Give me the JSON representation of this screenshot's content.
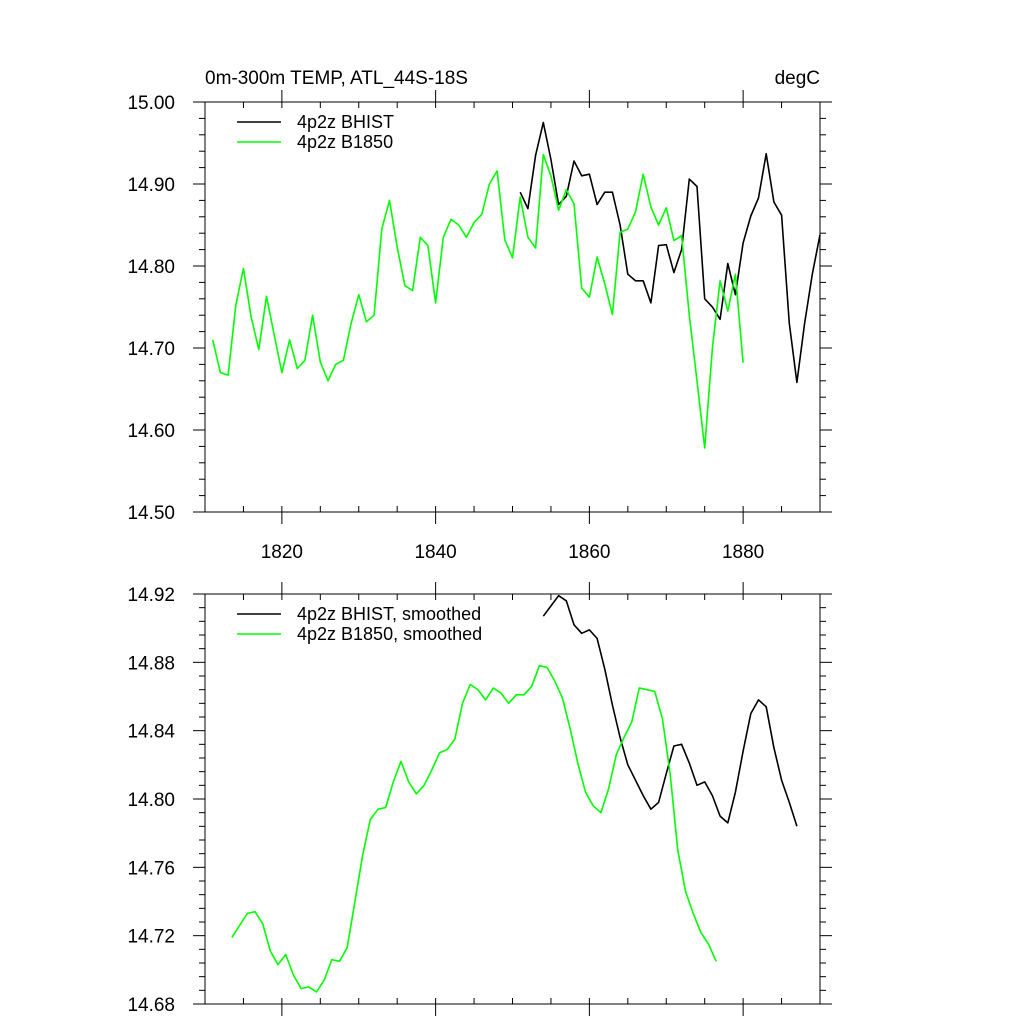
{
  "chart_data": [
    {
      "type": "line",
      "title": "0m-300m TEMP, ATL_44S-18S",
      "units": "degC",
      "xlim": [
        1810,
        1890
      ],
      "ylim": [
        14.5,
        15.0
      ],
      "xticks": [
        1820,
        1840,
        1860,
        1880
      ],
      "yticks": [
        "14.50",
        "14.60",
        "14.70",
        "14.80",
        "14.90",
        "15.00"
      ],
      "legend": {
        "position": "top-left"
      },
      "series": [
        {
          "name": "4p2z BHIST",
          "color": "#000000",
          "x0": 1851,
          "values": [
            14.89,
            14.87,
            14.935,
            14.975,
            14.93,
            14.875,
            14.885,
            14.928,
            14.91,
            14.912,
            14.875,
            14.89,
            14.89,
            14.85,
            14.79,
            14.782,
            14.782,
            14.755,
            14.825,
            14.826,
            14.792,
            14.82,
            14.906,
            14.897,
            14.76,
            14.75,
            14.735,
            14.803,
            14.765,
            14.828,
            14.861,
            14.883,
            14.937,
            14.878,
            14.862,
            14.73,
            14.658,
            14.73,
            14.79,
            14.838
          ]
        },
        {
          "name": "4p2z B1850",
          "color": "#00ff00",
          "x0": 1811,
          "values": [
            14.71,
            14.67,
            14.667,
            14.752,
            14.797,
            14.738,
            14.698,
            14.763,
            14.716,
            14.67,
            14.71,
            14.675,
            14.685,
            14.74,
            14.683,
            14.66,
            14.68,
            14.685,
            14.73,
            14.765,
            14.732,
            14.74,
            14.845,
            14.88,
            14.823,
            14.776,
            14.77,
            14.835,
            14.825,
            14.755,
            14.835,
            14.857,
            14.85,
            14.835,
            14.853,
            14.863,
            14.9,
            14.916,
            14.832,
            14.81,
            14.884,
            14.835,
            14.822,
            14.936,
            14.91,
            14.868,
            14.893,
            14.876,
            14.773,
            14.762,
            14.811,
            14.778,
            14.741,
            14.841,
            14.845,
            14.866,
            14.912,
            14.872,
            14.85,
            14.871,
            14.831,
            14.837,
            14.74,
            14.66,
            14.578,
            14.7,
            14.782,
            14.745,
            14.79,
            14.682
          ]
        }
      ]
    },
    {
      "type": "line",
      "title": "",
      "xlim": [
        1810,
        1890
      ],
      "ylim": [
        14.68,
        14.92
      ],
      "xticks": [
        1820,
        1840,
        1860,
        1880
      ],
      "yticks": [
        "14.68",
        "14.72",
        "14.76",
        "14.80",
        "14.84",
        "14.88",
        "14.92"
      ],
      "legend": {
        "position": "top-left"
      },
      "series": [
        {
          "name": "4p2z BHIST, smoothed",
          "color": "#000000",
          "x0": 1854,
          "values": [
            14.907,
            14.913,
            14.919,
            14.916,
            14.902,
            14.897,
            14.899,
            14.894,
            14.876,
            14.855,
            14.836,
            14.82,
            14.811,
            14.802,
            14.794,
            14.798,
            14.815,
            14.831,
            14.832,
            14.821,
            14.808,
            14.81,
            14.802,
            14.79,
            14.786,
            14.804,
            14.828,
            14.85,
            14.858,
            14.854,
            14.83,
            14.811,
            14.798,
            14.784
          ]
        },
        {
          "name": "4p2z B1850, smoothed",
          "color": "#00ff00",
          "x0": 1813.5,
          "values": [
            14.719,
            14.726,
            14.733,
            14.734,
            14.727,
            14.711,
            14.703,
            14.709,
            14.697,
            14.689,
            14.69,
            14.687,
            14.694,
            14.706,
            14.705,
            14.713,
            14.74,
            14.767,
            14.788,
            14.794,
            14.795,
            14.81,
            14.822,
            14.81,
            14.803,
            14.808,
            14.817,
            14.827,
            14.829,
            14.835,
            14.856,
            14.867,
            14.864,
            14.858,
            14.865,
            14.862,
            14.856,
            14.861,
            14.861,
            14.866,
            14.878,
            14.877,
            14.869,
            14.859,
            14.841,
            14.821,
            14.804,
            14.796,
            14.792,
            14.806,
            14.826,
            14.836,
            14.845,
            14.865,
            14.864,
            14.863,
            14.847,
            14.815,
            14.77,
            14.746,
            14.733,
            14.722,
            14.715,
            14.705
          ]
        }
      ]
    }
  ]
}
